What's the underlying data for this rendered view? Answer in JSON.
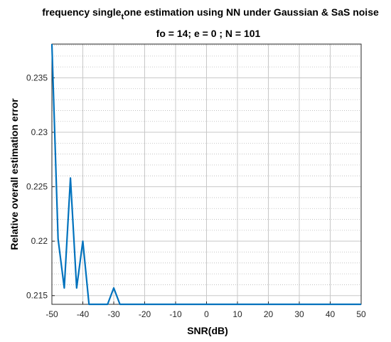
{
  "chart_data": {
    "type": "line",
    "title_main": "frequency single",
    "title_sub": "t",
    "title_rest": "one estimation using NN under Gaussian & SaS noise",
    "subtitle": "fo = 14; e = 0 ; N = 101",
    "xlabel": "SNR(dB)",
    "ylabel": "Relative overall estimation error",
    "xlim": [
      -50,
      50
    ],
    "ylim": [
      0.2142,
      0.2381
    ],
    "x_ticks": [
      -50,
      -40,
      -30,
      -20,
      -10,
      0,
      10,
      20,
      30,
      40,
      50
    ],
    "y_ticks": [
      0.215,
      0.22,
      0.225,
      0.23,
      0.235
    ],
    "y_tick_labels": [
      "0.215",
      "0.22",
      "0.225",
      "0.23",
      "0.235"
    ],
    "grid": true,
    "minor_grid_y": true,
    "series": [
      {
        "color": "#0072BD",
        "x": [
          -50,
          -48,
          -46,
          -44,
          -42,
          -40,
          -38,
          -36,
          -34,
          -32,
          -30,
          -28,
          -26,
          -24,
          -22,
          -20,
          -18,
          -16,
          -14,
          -12,
          -10,
          -8,
          -6,
          -4,
          -2,
          0,
          2,
          4,
          6,
          8,
          10,
          12,
          14,
          16,
          18,
          20,
          22,
          24,
          26,
          28,
          30,
          32,
          34,
          36,
          38,
          40,
          42,
          44,
          46,
          48,
          50
        ],
        "y": [
          0.2381,
          0.2202,
          0.2157,
          0.2258,
          0.2157,
          0.22,
          0.2142,
          0.2142,
          0.2142,
          0.2142,
          0.2157,
          0.2142,
          0.2142,
          0.2142,
          0.2142,
          0.2142,
          0.2142,
          0.2142,
          0.2142,
          0.2142,
          0.2142,
          0.2142,
          0.2142,
          0.2142,
          0.2142,
          0.2142,
          0.2142,
          0.2142,
          0.2142,
          0.2142,
          0.2142,
          0.2142,
          0.2142,
          0.2142,
          0.2142,
          0.2142,
          0.2142,
          0.2142,
          0.2142,
          0.2142,
          0.2142,
          0.2142,
          0.2142,
          0.2142,
          0.2142,
          0.2142,
          0.2142,
          0.2142,
          0.2142,
          0.2142,
          0.2142
        ]
      }
    ]
  }
}
